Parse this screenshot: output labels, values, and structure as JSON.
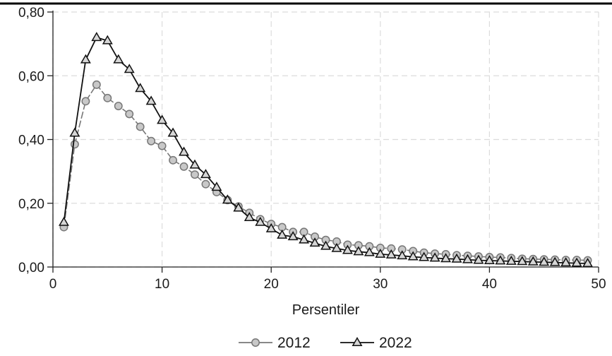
{
  "chart_data": {
    "type": "line",
    "xlabel": "Persentiler",
    "ylabel": "",
    "xlim": [
      0,
      50
    ],
    "ylim": [
      0,
      0.8
    ],
    "x_ticks": [
      0,
      10,
      20,
      30,
      40,
      50
    ],
    "x_tick_labels": [
      "0",
      "10",
      "20",
      "30",
      "40",
      "50"
    ],
    "y_ticks": [
      0,
      0.2,
      0.4,
      0.6,
      0.8
    ],
    "y_tick_labels": [
      "0,00",
      "0,20",
      "0,40",
      "0,60",
      "0,80"
    ],
    "grid": true,
    "legend_position": "bottom",
    "x": [
      1,
      2,
      3,
      4,
      5,
      6,
      7,
      8,
      9,
      10,
      11,
      12,
      13,
      14,
      15,
      16,
      17,
      18,
      19,
      20,
      21,
      22,
      23,
      24,
      25,
      26,
      27,
      28,
      29,
      30,
      31,
      32,
      33,
      34,
      35,
      36,
      37,
      38,
      39,
      40,
      41,
      42,
      43,
      44,
      45,
      46,
      47,
      48,
      49
    ],
    "series": [
      {
        "name": "2012",
        "marker": "circle",
        "color": "#777777",
        "values": [
          0.125,
          0.385,
          0.52,
          0.572,
          0.53,
          0.505,
          0.48,
          0.44,
          0.395,
          0.38,
          0.335,
          0.315,
          0.29,
          0.26,
          0.235,
          0.21,
          0.19,
          0.17,
          0.15,
          0.135,
          0.125,
          0.11,
          0.11,
          0.095,
          0.085,
          0.08,
          0.07,
          0.068,
          0.065,
          0.06,
          0.058,
          0.055,
          0.05,
          0.045,
          0.042,
          0.04,
          0.037,
          0.035,
          0.033,
          0.031,
          0.03,
          0.028,
          0.026,
          0.025,
          0.024,
          0.023,
          0.022,
          0.022,
          0.021
        ]
      },
      {
        "name": "2022",
        "marker": "triangle",
        "color": "#111111",
        "values": [
          0.14,
          0.42,
          0.65,
          0.72,
          0.71,
          0.65,
          0.62,
          0.56,
          0.52,
          0.46,
          0.42,
          0.36,
          0.32,
          0.29,
          0.25,
          0.21,
          0.185,
          0.155,
          0.14,
          0.12,
          0.1,
          0.095,
          0.085,
          0.075,
          0.065,
          0.058,
          0.052,
          0.048,
          0.045,
          0.04,
          0.038,
          0.035,
          0.032,
          0.03,
          0.028,
          0.026,
          0.025,
          0.023,
          0.021,
          0.02,
          0.019,
          0.018,
          0.017,
          0.016,
          0.015,
          0.014,
          0.013,
          0.012,
          0.011
        ]
      }
    ]
  }
}
